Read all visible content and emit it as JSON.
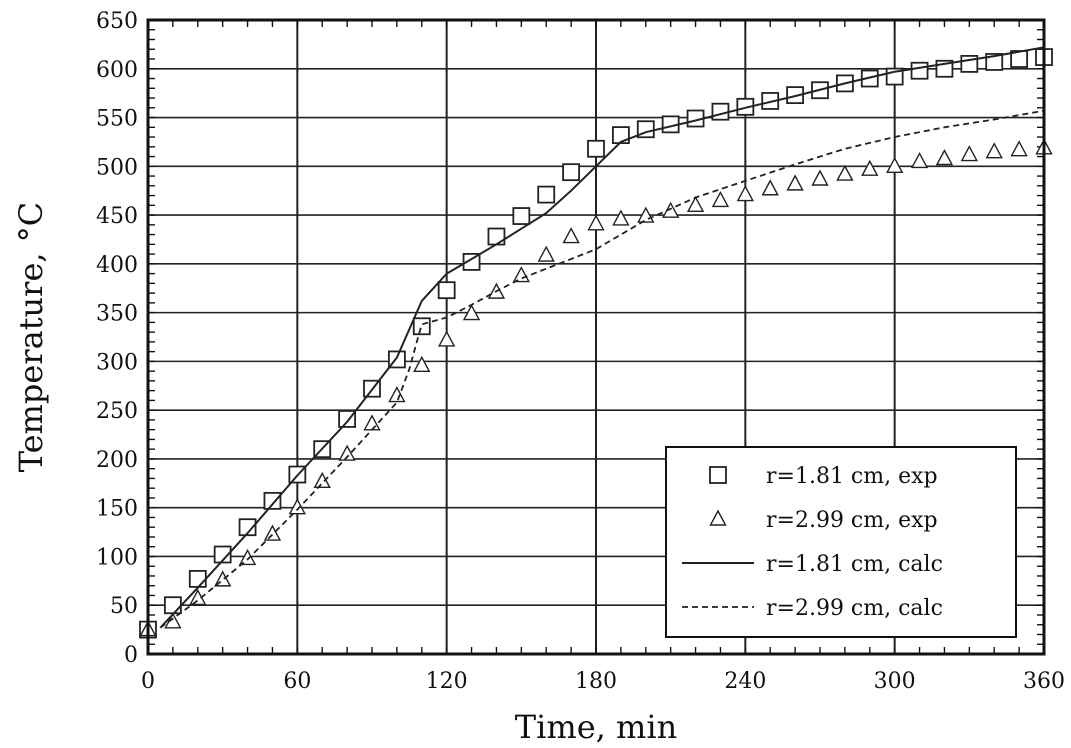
{
  "chart_data": {
    "type": "line",
    "title": "",
    "xlabel": "Time, min",
    "ylabel": "Temperature, °C",
    "xlim": [
      0,
      360
    ],
    "ylim": [
      0,
      650
    ],
    "x_ticks": [
      0,
      60,
      120,
      180,
      240,
      300,
      360
    ],
    "y_ticks": [
      0,
      50,
      100,
      150,
      200,
      250,
      300,
      350,
      400,
      450,
      500,
      550,
      600,
      650
    ],
    "grid": true,
    "legend_position": "bottom-right",
    "series": [
      {
        "name": "r=1.81 cm, exp",
        "marker": "square",
        "line": "none",
        "color": "#222222",
        "x": [
          0,
          10,
          20,
          30,
          40,
          50,
          60,
          70,
          80,
          90,
          100,
          110,
          120,
          130,
          140,
          150,
          160,
          170,
          180,
          190,
          200,
          210,
          220,
          230,
          240,
          250,
          260,
          270,
          280,
          290,
          300,
          310,
          320,
          330,
          340,
          350,
          360
        ],
        "y": [
          25,
          50,
          77,
          102,
          130,
          157,
          184,
          210,
          241,
          272,
          302,
          336,
          373,
          402,
          428,
          449,
          471,
          494,
          518,
          532,
          538,
          543,
          549,
          556,
          561,
          567,
          573,
          578,
          585,
          590,
          592,
          598,
          600,
          605,
          607,
          610,
          612
        ]
      },
      {
        "name": "r=2.99 cm, exp",
        "marker": "triangle",
        "line": "none",
        "color": "#222222",
        "x": [
          0,
          10,
          20,
          30,
          40,
          50,
          60,
          70,
          80,
          90,
          100,
          110,
          120,
          130,
          140,
          150,
          160,
          170,
          180,
          190,
          200,
          210,
          220,
          230,
          240,
          250,
          260,
          270,
          280,
          290,
          300,
          310,
          320,
          330,
          340,
          350,
          360
        ],
        "y": [
          25,
          33,
          57,
          76,
          98,
          123,
          150,
          177,
          205,
          236,
          265,
          296,
          322,
          349,
          371,
          388,
          409,
          428,
          441,
          446,
          449,
          454,
          460,
          465,
          471,
          477,
          482,
          487,
          492,
          497,
          500,
          505,
          508,
          512,
          515,
          517,
          519
        ]
      },
      {
        "name": "r=1.81 cm, calc",
        "marker": "none",
        "line": "solid",
        "color": "#222222",
        "x": [
          5,
          20,
          40,
          60,
          80,
          100,
          110,
          120,
          130,
          140,
          150,
          160,
          170,
          180,
          190,
          200,
          220,
          240,
          260,
          280,
          300,
          320,
          340,
          360
        ],
        "y": [
          27,
          68,
          124,
          183,
          238,
          304,
          362,
          390,
          405,
          420,
          436,
          452,
          475,
          500,
          525,
          535,
          547,
          560,
          572,
          585,
          597,
          605,
          613,
          622
        ]
      },
      {
        "name": "r=2.99 cm, calc",
        "marker": "none",
        "line": "dashed",
        "color": "#222222",
        "x": [
          5,
          20,
          40,
          60,
          80,
          100,
          105,
          108,
          110,
          120,
          130,
          140,
          150,
          160,
          170,
          180,
          190,
          200,
          220,
          240,
          260,
          280,
          300,
          320,
          340,
          360
        ],
        "y": [
          27,
          55,
          97,
          148,
          202,
          258,
          292,
          320,
          338,
          345,
          358,
          372,
          385,
          395,
          405,
          415,
          430,
          445,
          468,
          485,
          502,
          518,
          530,
          540,
          548,
          557
        ]
      }
    ]
  }
}
